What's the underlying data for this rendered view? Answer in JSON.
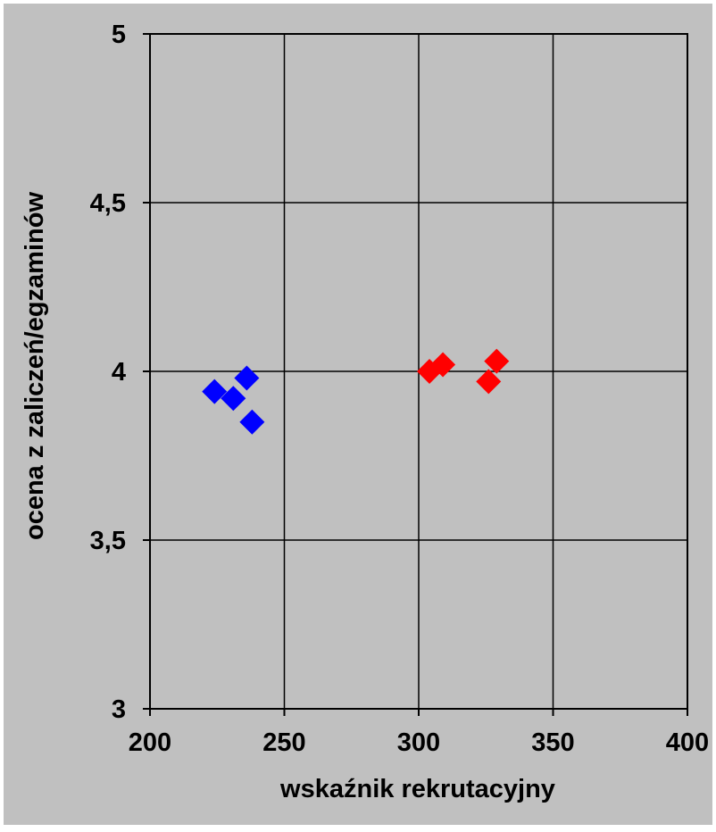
{
  "chart_data": {
    "type": "scatter",
    "title": "",
    "xlabel": "wskaźnik rekrutacyjny",
    "ylabel": "ocena z zaliczeń/egzaminów",
    "xlim": [
      200,
      400
    ],
    "ylim": [
      3,
      5
    ],
    "x_ticks": [
      200,
      250,
      300,
      350,
      400
    ],
    "y_ticks": [
      3,
      3.5,
      4,
      4.5,
      5
    ],
    "x_tick_labels": [
      "200",
      "250",
      "300",
      "350",
      "400"
    ],
    "y_tick_labels": [
      "3",
      "3,5",
      "4",
      "4,5",
      "5"
    ],
    "grid": true,
    "legend": "none",
    "background_color": "#c0c0c0",
    "plot_background_color": "#c0c0c0",
    "series": [
      {
        "color": "#0000ff",
        "marker": "diamond",
        "points": [
          {
            "x": 224,
            "y": 3.94
          },
          {
            "x": 231,
            "y": 3.92
          },
          {
            "x": 236,
            "y": 3.98
          },
          {
            "x": 238,
            "y": 3.85
          }
        ]
      },
      {
        "color": "#ff0000",
        "marker": "diamond",
        "points": [
          {
            "x": 304,
            "y": 4.0
          },
          {
            "x": 309,
            "y": 4.02
          },
          {
            "x": 326,
            "y": 3.97
          },
          {
            "x": 329,
            "y": 4.03
          }
        ]
      }
    ]
  }
}
